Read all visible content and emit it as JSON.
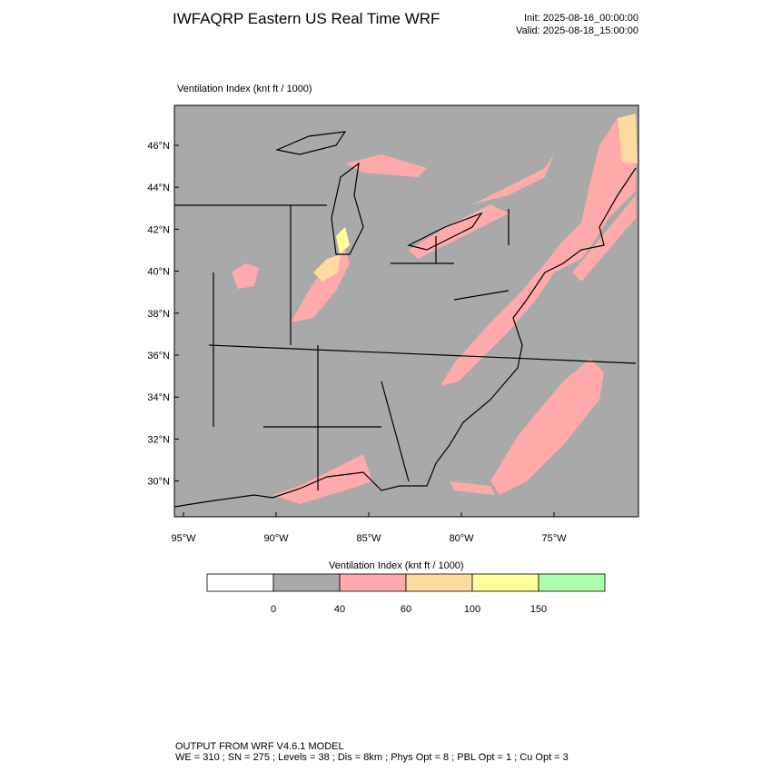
{
  "header": {
    "title": "IWFAQRP Eastern US Real Time WRF",
    "init": "Init: 2025-08-16_00:00:00",
    "valid": "Valid: 2025-08-18_15:00:00"
  },
  "map": {
    "field_label": "Ventilation Index   (knt ft / 1000)",
    "lat_labels": [
      "46°N",
      "44°N",
      "42°N",
      "40°N",
      "38°N",
      "36°N",
      "34°N",
      "32°N",
      "30°N"
    ],
    "lon_labels": [
      "95°W",
      "90°W",
      "85°W",
      "80°W",
      "75°W"
    ]
  },
  "colorbar": {
    "title": "Ventilation Index  (knt ft / 1000)",
    "colors": [
      "#ffffff",
      "#a9a9a9",
      "#ffaaaa",
      "#ffdaa0",
      "#ffff99",
      "#aaffaa"
    ],
    "ticks": [
      0,
      40,
      60,
      100,
      150
    ]
  },
  "footer": {
    "line1": "OUTPUT FROM WRF V4.6.1 MODEL",
    "line2": "WE = 310 ; SN = 275 ; Levels = 38 ; Dis = 8km ; Phys Opt = 8 ; PBL Opt = 1 ; Cu Opt = 3"
  }
}
